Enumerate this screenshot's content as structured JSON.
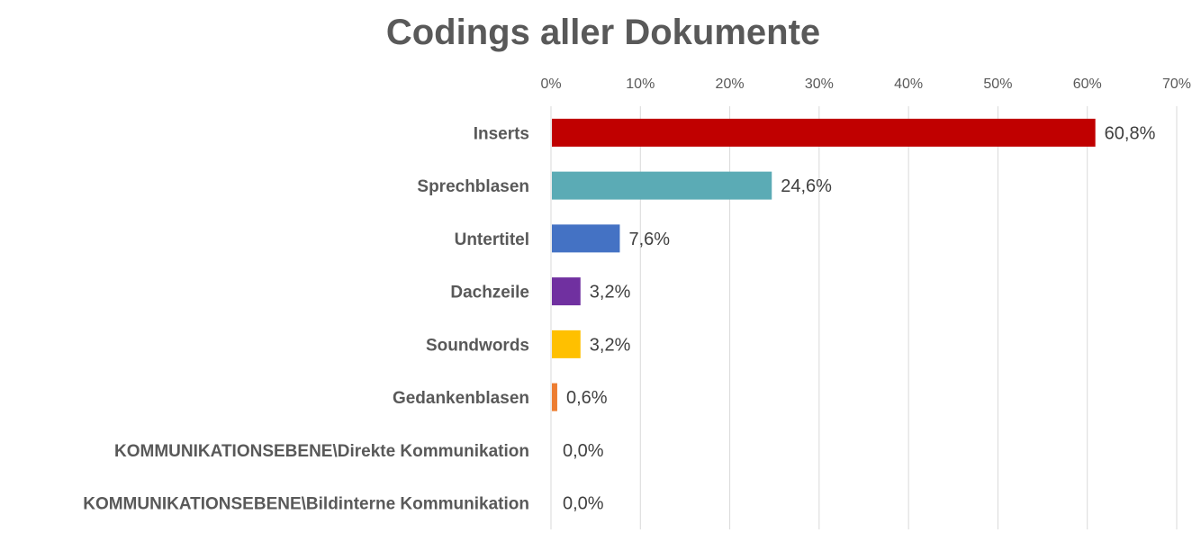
{
  "chart_data": {
    "type": "bar",
    "orientation": "horizontal",
    "title": "Codings aller Dokumente",
    "xlim": [
      0,
      70
    ],
    "x_ticks": [
      "0%",
      "10%",
      "20%",
      "30%",
      "40%",
      "50%",
      "60%",
      "70%"
    ],
    "grid": true,
    "categories": [
      "Inserts",
      "Sprechblasen",
      "Untertitel",
      "Dachzeile",
      "Soundwords",
      "Gedankenblasen",
      "KOMMUNIKATIONSEBENE\\Direkte Kommunikation",
      "KOMMUNIKATIONSEBENE\\Bildinterne Kommunikation"
    ],
    "values": [
      60.8,
      24.6,
      7.6,
      3.2,
      3.2,
      0.6,
      0.0,
      0.0
    ],
    "data_labels": [
      "60,8%",
      "24,6%",
      "7,6%",
      "3,2%",
      "3,2%",
      "0,6%",
      "0,0%",
      "0,0%"
    ],
    "colors": [
      "#C00000",
      "#5BABB5",
      "#4472C4",
      "#7030A0",
      "#FFC000",
      "#ED7D31",
      "#A5A5A5",
      "#A5A5A5"
    ]
  }
}
